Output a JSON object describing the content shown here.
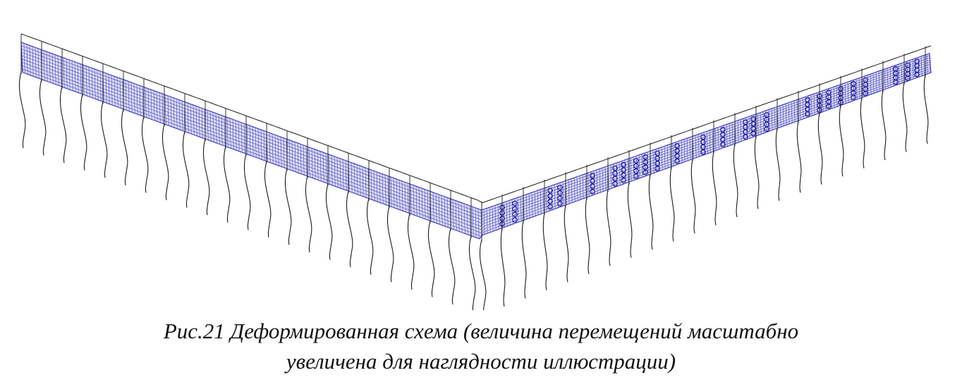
{
  "figure": {
    "caption_line1": "Рис.21 Деформированная схема (величина перемещений масштабно",
    "caption_line2": "увеличена для наглядности иллюстрации)"
  },
  "colors": {
    "mesh": "#2a2ab4",
    "mesh_dense": "#101090",
    "outline": "#1a1a1a",
    "background": "#ffffff"
  }
}
